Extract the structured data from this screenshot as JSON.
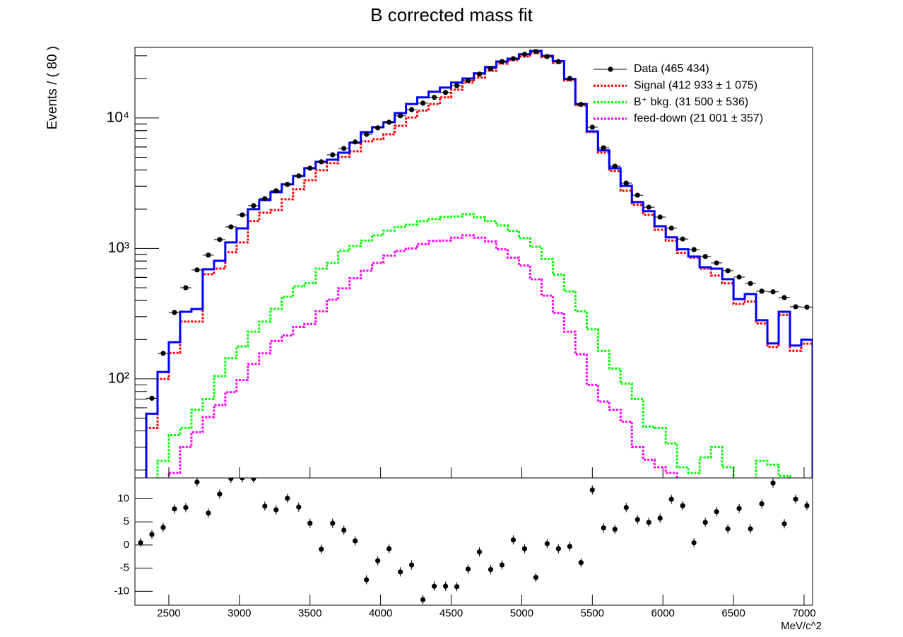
{
  "chart_data": [
    {
      "type": "step",
      "title": "B corrected mass fit",
      "ylabel": "Events / ( 80 )",
      "x": [
        2300,
        2380,
        2460,
        2540,
        2620,
        2700,
        2780,
        2860,
        2940,
        3020,
        3100,
        3180,
        3260,
        3340,
        3420,
        3500,
        3580,
        3660,
        3740,
        3820,
        3900,
        3980,
        4060,
        4140,
        4220,
        4300,
        4380,
        4460,
        4540,
        4620,
        4700,
        4780,
        4860,
        4940,
        5020,
        5100,
        5180,
        5260,
        5340,
        5420,
        5500,
        5580,
        5660,
        5740,
        5820,
        5900,
        5980,
        6060,
        6140,
        6220,
        6300,
        6380,
        6460,
        6540,
        6620,
        6700,
        6780,
        6860,
        6940,
        7020
      ],
      "xlim": [
        2260,
        7060
      ],
      "xticks": [
        2500,
        3000,
        3500,
        4000,
        4500,
        5000,
        5500,
        6000,
        6500,
        7000
      ],
      "ylim": [
        17.4,
        34800
      ],
      "log_y": true,
      "yticks": [
        {
          "value": 100,
          "label": "10²"
        },
        {
          "value": 1000,
          "label": "10³"
        },
        {
          "value": 10000,
          "label": "10⁴"
        }
      ],
      "legend": "top-right",
      "series": [
        {
          "name": "Data (465 434)",
          "color": "#000000",
          "style": "points",
          "values": [
            14,
            71,
            157,
            323,
            500,
            684,
            889,
            1170,
            1463,
            1808,
            2128,
            2410,
            2767,
            3097,
            3597,
            4122,
            4613,
            5224,
            5845,
            6546,
            7500,
            8400,
            9280,
            10400,
            11600,
            13000,
            14400,
            15700,
            17700,
            19400,
            21700,
            23900,
            27100,
            28500,
            30800,
            32300,
            29600,
            27100,
            20100,
            12700,
            8500,
            5910,
            4270,
            3170,
            2560,
            2070,
            1740,
            1430,
            1180,
            980,
            867,
            774,
            675,
            603,
            539,
            470,
            465,
            420,
            357,
            355
          ]
        },
        {
          "name": "Signal (412 933 ± 1 075)",
          "color": "#ff0000",
          "style": "dotted",
          "values": [
            12,
            42,
            100,
            158,
            275,
            275,
            634,
            700,
            935,
            1112,
            1620,
            1880,
            1970,
            2380,
            2840,
            3330,
            3970,
            4500,
            5030,
            5560,
            6630,
            6880,
            7500,
            8720,
            10100,
            11400,
            12800,
            14400,
            16500,
            18700,
            20400,
            23000,
            26100,
            27800,
            29600,
            31500,
            29300,
            26500,
            19400,
            12500,
            7800,
            5430,
            3930,
            2770,
            2160,
            1810,
            1390,
            1150,
            925,
            850,
            700,
            620,
            540,
            375,
            392,
            266,
            176,
            310,
            164,
            186
          ]
        },
        {
          "name": "B⁺ bkg. (31 500 ± 536)",
          "color": "#00ff00",
          "style": "dotted",
          "values": [
            12,
            12,
            23.5,
            37,
            42,
            58,
            70,
            105,
            144,
            177,
            230,
            275,
            344,
            426,
            512,
            541,
            700,
            775,
            957,
            1045,
            1150,
            1260,
            1370,
            1460,
            1520,
            1620,
            1680,
            1740,
            1760,
            1830,
            1730,
            1620,
            1500,
            1360,
            1200,
            1030,
            830,
            630,
            470,
            330,
            240,
            164,
            120,
            92,
            70,
            43,
            42,
            32,
            21,
            19,
            25,
            30,
            21,
            17,
            15,
            23.5,
            22,
            18,
            15,
            15
          ]
        },
        {
          "name": "feed-down (21 001 ± 357)",
          "color": "#ff00ff",
          "style": "dotted",
          "values": [
            12,
            12,
            12,
            19,
            30,
            39,
            51,
            63,
            79,
            98,
            130,
            157,
            195,
            215,
            250,
            263,
            330,
            405,
            494,
            590,
            675,
            774,
            880,
            957,
            1000,
            1080,
            1140,
            1150,
            1210,
            1260,
            1210,
            1130,
            985,
            850,
            740,
            580,
            435,
            320,
            230,
            154,
            90,
            67,
            58,
            47,
            30,
            24,
            21,
            19,
            15,
            15,
            15,
            15,
            15,
            15,
            15,
            15,
            15,
            15,
            15,
            15
          ]
        },
        {
          "color": "#0000ff",
          "style": "solid",
          "values": [
            12,
            54,
            113,
            191,
            327,
            343,
            692,
            804,
            1112,
            1426,
            2000,
            2350,
            2700,
            3100,
            3597,
            4122,
            4613,
            4790,
            5420,
            6460,
            7790,
            8500,
            9280,
            10900,
            12800,
            14400,
            15900,
            17100,
            18700,
            20100,
            22000,
            24600,
            27100,
            28500,
            30800,
            32700,
            30000,
            27300,
            19900,
            12800,
            7890,
            5640,
            4120,
            3020,
            2265,
            1930,
            1480,
            1215,
            985,
            867,
            718,
            700,
            581,
            409,
            447,
            282,
            187,
            327,
            180,
            200
          ]
        }
      ]
    },
    {
      "type": "scatter",
      "xlabel": "MeV/c^2",
      "x": [
        2300,
        2380,
        2460,
        2540,
        2620,
        2700,
        2780,
        2860,
        2940,
        3020,
        3100,
        3180,
        3260,
        3340,
        3420,
        3500,
        3580,
        3660,
        3740,
        3820,
        3900,
        3980,
        4060,
        4140,
        4220,
        4300,
        4380,
        4460,
        4540,
        4620,
        4700,
        4780,
        4860,
        4940,
        5020,
        5100,
        5180,
        5260,
        5340,
        5420,
        5500,
        5580,
        5660,
        5740,
        5820,
        5900,
        5980,
        6060,
        6140,
        6220,
        6300,
        6380,
        6460,
        6540,
        6620,
        6700,
        6780,
        6860,
        6940,
        7020
      ],
      "values": [
        0.5,
        2.3,
        3.8,
        7.8,
        8.1,
        13.6,
        6.9,
        11.0,
        14.4,
        14.5,
        14.4,
        8.4,
        7.6,
        10.1,
        8.2,
        4.7,
        -0.9,
        4.7,
        3.2,
        0.9,
        -7.5,
        -3.4,
        -0.8,
        -5.8,
        -4.3,
        -11.8,
        -8.9,
        -8.9,
        -9.0,
        -5.2,
        -1.5,
        -5.3,
        -4.3,
        1.1,
        -0.8,
        -7.0,
        0.3,
        -0.8,
        -0.3,
        -3.8,
        11.9,
        3.7,
        3.4,
        8.1,
        5.5,
        4.9,
        5.8,
        9.9,
        8.5,
        0.5,
        4.9,
        7.2,
        3.5,
        7.9,
        3.5,
        8.9,
        13.4,
        4.6,
        9.9,
        8.5
      ],
      "yerr": 1,
      "color": "#000000",
      "xlim": [
        2260,
        7060
      ],
      "xticks": [
        2500,
        3000,
        3500,
        4000,
        4500,
        5000,
        5500,
        6000,
        6500,
        7000
      ],
      "ylim": [
        -13,
        14.5
      ],
      "yticks": [
        -10,
        -5,
        0,
        5,
        10
      ]
    }
  ]
}
